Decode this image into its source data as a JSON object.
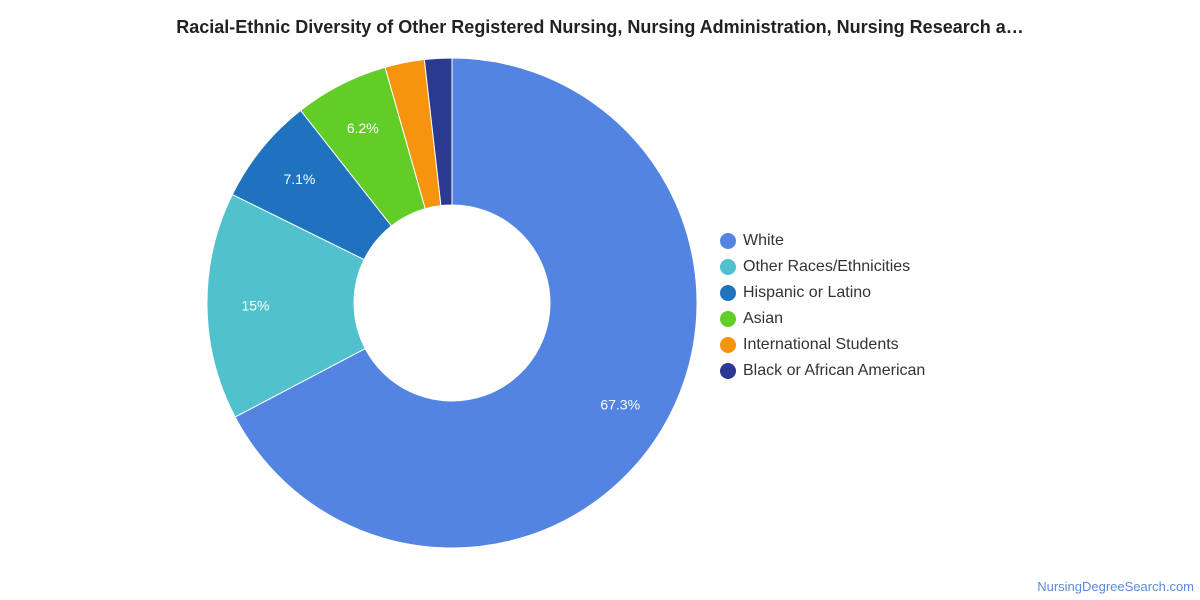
{
  "chart_data": {
    "type": "pie",
    "title": "Racial-Ethnic Diversity of Other Registered Nursing, Nursing Administration, Nursing Research a…",
    "donut": true,
    "legend_position": "right",
    "categories": [
      "White",
      "Other Races/Ethnicities",
      "Hispanic or Latino",
      "Asian",
      "International Students",
      "Black or African American"
    ],
    "values": [
      67.3,
      15,
      7.1,
      6.2,
      2.6,
      1.8
    ],
    "data_labels": [
      "67.3%",
      "15%",
      "7.1%",
      "6.2%",
      "",
      ""
    ],
    "colors": [
      "#5484e2",
      "#50c1cd",
      "#1f73be",
      "#63cd28",
      "#f7940e",
      "#2b3990"
    ]
  },
  "footer": {
    "source": "NursingDegreeSearch.com"
  }
}
